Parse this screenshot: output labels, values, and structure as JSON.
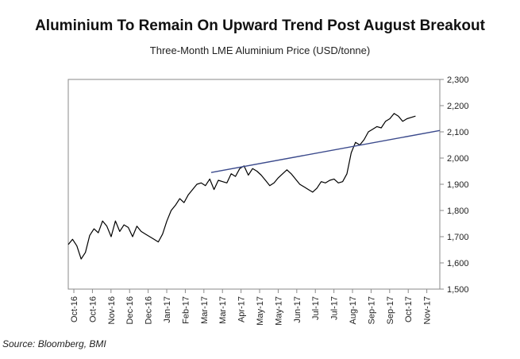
{
  "title": "Aluminium To Remain On Upward Trend Post August Breakout",
  "subtitle": "Three-Month LME Aluminium Price (USD/tonne)",
  "source": "Source: Bloomberg, BMI",
  "chart_data": {
    "type": "line",
    "title": "Aluminium To Remain On Upward Trend Post August Breakout",
    "subtitle": "Three-Month LME Aluminium Price (USD/tonne)",
    "xlabel": "",
    "ylabel": "",
    "ylim": [
      1500,
      2300
    ],
    "y_axis_side": "right",
    "yticks": [
      1500,
      1600,
      1700,
      1800,
      1900,
      2000,
      2100,
      2200,
      2300
    ],
    "ytick_labels": [
      "1,500",
      "1,600",
      "1,700",
      "1,800",
      "1,900",
      "2,000",
      "2,100",
      "2,200",
      "2,300"
    ],
    "x_tick_labels": [
      "Oct-16",
      "Oct-16",
      "Nov-16",
      "Dec-16",
      "Dec-16",
      "Jan-17",
      "Feb-17",
      "Mar-17",
      "Mar-17",
      "Apr-17",
      "May-17",
      "May-17",
      "Jun-17",
      "Jul-17",
      "Jul-17",
      "Aug-17",
      "Sep-17",
      "Sep-17",
      "Oct-17",
      "Nov-17"
    ],
    "x_range_months": [
      0,
      13
    ],
    "series": [
      {
        "name": "Three-Month LME Aluminium Price",
        "color": "#000000",
        "x": [
          0.0,
          0.15,
          0.3,
          0.45,
          0.6,
          0.75,
          0.9,
          1.05,
          1.2,
          1.35,
          1.5,
          1.65,
          1.8,
          1.95,
          2.1,
          2.25,
          2.4,
          2.55,
          2.7,
          2.85,
          3.0,
          3.15,
          3.3,
          3.45,
          3.6,
          3.75,
          3.9,
          4.05,
          4.2,
          4.35,
          4.5,
          4.65,
          4.8,
          4.95,
          5.1,
          5.25,
          5.4,
          5.55,
          5.7,
          5.85,
          6.0,
          6.15,
          6.3,
          6.45,
          6.6,
          6.75,
          6.9,
          7.05,
          7.2,
          7.35,
          7.5,
          7.65,
          7.8,
          7.95,
          8.1,
          8.25,
          8.4,
          8.55,
          8.7,
          8.85,
          9.0,
          9.15,
          9.3,
          9.45,
          9.6,
          9.75,
          9.9,
          10.05,
          10.2,
          10.35,
          10.5,
          10.65,
          10.8,
          10.95,
          11.1,
          11.25,
          11.4,
          11.55,
          11.7,
          11.85,
          12.0,
          12.15
        ],
        "y": [
          1670,
          1690,
          1665,
          1615,
          1640,
          1705,
          1730,
          1715,
          1760,
          1740,
          1700,
          1760,
          1720,
          1745,
          1735,
          1700,
          1740,
          1720,
          1710,
          1700,
          1690,
          1680,
          1710,
          1760,
          1800,
          1820,
          1845,
          1830,
          1860,
          1880,
          1900,
          1905,
          1895,
          1920,
          1880,
          1915,
          1910,
          1905,
          1940,
          1930,
          1960,
          1970,
          1935,
          1960,
          1950,
          1935,
          1915,
          1895,
          1905,
          1925,
          1940,
          1955,
          1940,
          1920,
          1900,
          1890,
          1880,
          1870,
          1885,
          1910,
          1905,
          1915,
          1920,
          1905,
          1910,
          1940,
          2020,
          2060,
          2050,
          2070,
          2100,
          2110,
          2120,
          2115,
          2140,
          2150,
          2170,
          2160,
          2140,
          2150,
          2155,
          2160
        ]
      },
      {
        "name": "Trendline",
        "color": "#3b4a8c",
        "x": [
          5.0,
          13.0
        ],
        "y": [
          1945,
          2105
        ]
      }
    ]
  }
}
